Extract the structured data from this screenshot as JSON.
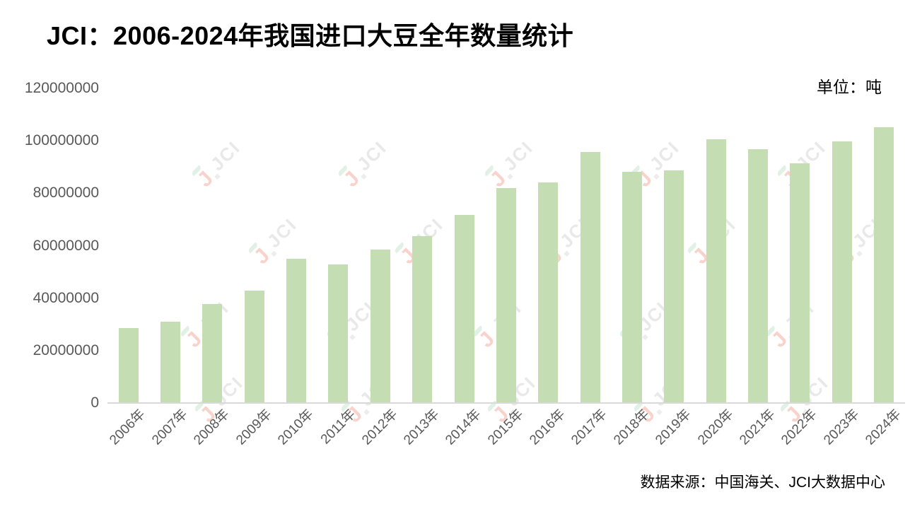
{
  "header": {
    "title": "JCI：2006-2024年我国进口大豆全年数量统计",
    "unit_label": "单位：吨"
  },
  "footer": {
    "source": "数据来源：中国海关、JCI大数据中心"
  },
  "watermark": {
    "brand": "JCI",
    "j_glyph": "J"
  },
  "colors": {
    "bar": "#c5ddb2",
    "axis_label": "#595959",
    "baseline": "#d9d9d9",
    "title_text": "#000000",
    "watermark_j": "#f8d3cc",
    "watermark_text": "#e9e9e9",
    "watermark_accent": "#e2f1e6"
  },
  "chart_data": {
    "type": "bar",
    "title": "JCI：2006-2024年我国进口大豆全年数量统计",
    "unit": "吨",
    "categories": [
      "2006年",
      "2007年",
      "2008年",
      "2009年",
      "2010年",
      "2011年",
      "2012年",
      "2013年",
      "2014年",
      "2015年",
      "2016年",
      "2017年",
      "2018年",
      "2019年",
      "2020年",
      "2021年",
      "2022年",
      "2023年",
      "2024年"
    ],
    "values": [
      28270000,
      30820000,
      37440000,
      42550000,
      54800000,
      52640000,
      58380000,
      63380000,
      71400000,
      81690000,
      83910000,
      95530000,
      88030000,
      88510000,
      100330000,
      96520000,
      91080000,
      99410000,
      105030000
    ],
    "ylim": [
      0,
      120000000
    ],
    "yticks": [
      0,
      20000000,
      40000000,
      60000000,
      80000000,
      100000000,
      120000000
    ],
    "grid": false,
    "legend_position": "none",
    "xlabel": "",
    "ylabel": "",
    "source": "数据来源：中国海关、JCI大数据中心"
  }
}
